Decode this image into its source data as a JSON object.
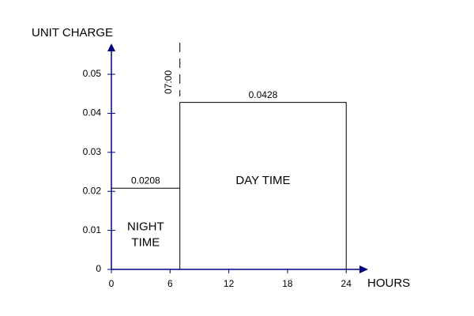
{
  "chart_data": {
    "type": "step",
    "x_label": "HOURS",
    "y_label": "UNIT CHARGE",
    "xlim": [
      0,
      26
    ],
    "xticks": [
      0,
      6,
      12,
      18,
      24
    ],
    "ylim": [
      0,
      0.0575
    ],
    "yticks": [
      0,
      0.01,
      0.02,
      0.03,
      0.04,
      0.05
    ],
    "axis_color": "#000080",
    "line_color": "#000000",
    "segments": [
      {
        "start": 0,
        "end": 7,
        "value": 0.0208,
        "label_lines": [
          "NIGHT",
          "TIME"
        ]
      },
      {
        "start": 7,
        "end": 24,
        "value": 0.0428,
        "label_lines": [
          "DAY TIME"
        ]
      }
    ],
    "annotations": [
      {
        "x": 7,
        "text": "07:00"
      }
    ]
  }
}
